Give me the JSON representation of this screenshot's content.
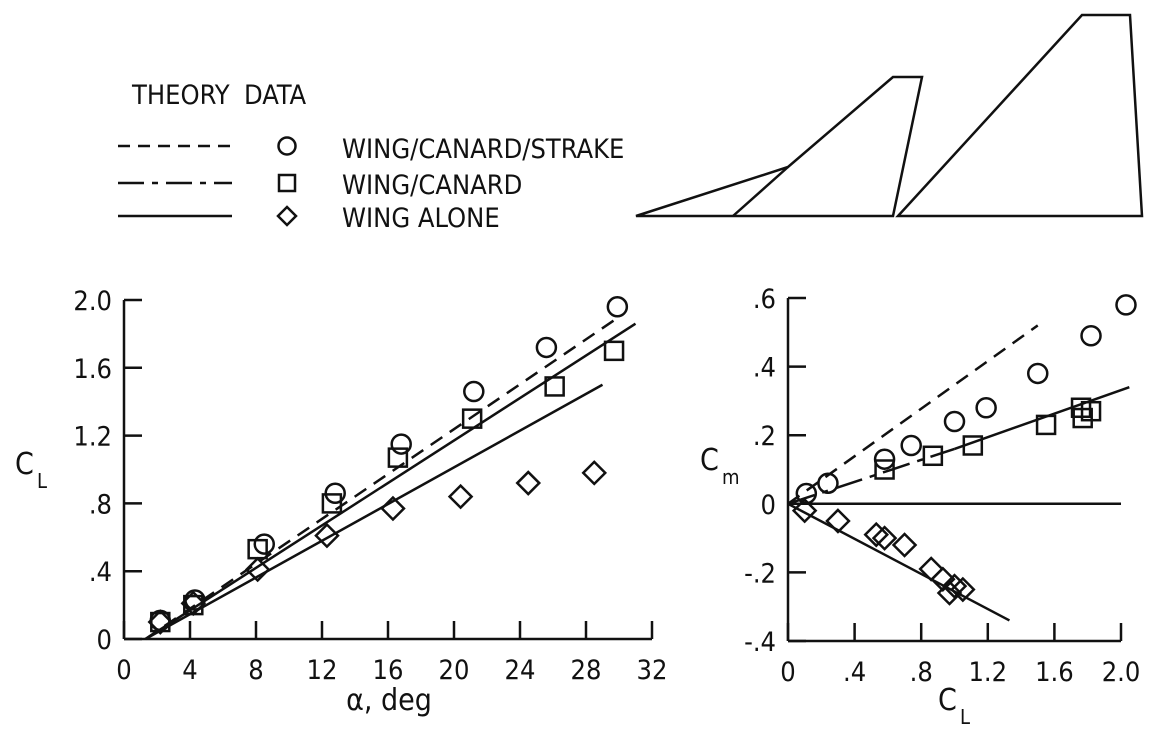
{
  "legend": {
    "theory_header": "THEORY",
    "data_header": "DATA",
    "entries": [
      {
        "label": "WING/CANARD/STRAKE",
        "line": "dashed",
        "marker": "circle"
      },
      {
        "label": "WING/CANARD",
        "line": "dash-dot",
        "marker": "square"
      },
      {
        "label": "WING ALONE",
        "line": "solid",
        "marker": "diamond"
      }
    ]
  },
  "planform_icons": [
    "wing-strake-planform",
    "canard-planform"
  ],
  "colors": {
    "ink": "#111111",
    "background": "#ffffff"
  },
  "chart_data": [
    {
      "type": "scatter",
      "title": "",
      "xlabel": "α, deg",
      "ylabel": "C",
      "ylabel_sub": "L",
      "xlim": [
        0,
        32
      ],
      "ylim": [
        0,
        2.0
      ],
      "xticks": [
        0,
        4,
        8,
        12,
        16,
        20,
        24,
        28,
        32
      ],
      "xtick_labels": [
        "0",
        "4",
        "8",
        "12",
        "16",
        "20",
        "24",
        "28",
        "32"
      ],
      "yticks": [
        0,
        0.4,
        0.8,
        1.2,
        1.6,
        2.0
      ],
      "ytick_labels": [
        "0",
        ".4",
        ".8",
        "1.2",
        "1.6",
        "2.0"
      ],
      "grid": false,
      "series": [
        {
          "name": "WING/CANARD/STRAKE",
          "marker": "circle",
          "x": [
            2.2,
            4.3,
            8.5,
            12.8,
            16.8,
            21.2,
            25.6,
            29.9
          ],
          "y": [
            0.11,
            0.23,
            0.56,
            0.86,
            1.15,
            1.46,
            1.72,
            1.96
          ]
        },
        {
          "name": "WING/CANARD",
          "marker": "square",
          "x": [
            2.2,
            4.2,
            8.1,
            12.6,
            16.6,
            21.1,
            26.1,
            29.7
          ],
          "y": [
            0.1,
            0.2,
            0.53,
            0.8,
            1.07,
            1.3,
            1.49,
            1.7
          ]
        },
        {
          "name": "WING ALONE",
          "marker": "diamond",
          "x": [
            2.2,
            4.2,
            8.1,
            12.3,
            16.3,
            20.4,
            24.5,
            28.5
          ],
          "y": [
            0.1,
            0.21,
            0.41,
            0.61,
            0.77,
            0.84,
            0.92,
            0.98
          ]
        }
      ],
      "theory_lines": [
        {
          "name": "WING/CANARD/STRAKE",
          "style": "dashed",
          "x": [
            1.3,
            30
          ],
          "y": [
            0,
            1.9
          ]
        },
        {
          "name": "WING/CANARD",
          "style": "solid",
          "x": [
            1.3,
            31
          ],
          "y": [
            0,
            1.86
          ]
        },
        {
          "name": "WING ALONE",
          "style": "solid",
          "x": [
            1.3,
            29
          ],
          "y": [
            0,
            1.5
          ]
        }
      ]
    },
    {
      "type": "scatter",
      "title": "",
      "xlabel": "C",
      "xlabel_sub": "L",
      "ylabel": "C",
      "ylabel_sub": "m",
      "xlim": [
        0,
        2.0
      ],
      "ylim": [
        -0.4,
        0.6
      ],
      "xticks": [
        0,
        0.4,
        0.8,
        1.2,
        1.6,
        2.0
      ],
      "xtick_labels": [
        "0",
        ".4",
        ".8",
        "1.2",
        "1.6",
        "2.0"
      ],
      "yticks": [
        -0.4,
        -0.2,
        0,
        0.2,
        0.4,
        0.6
      ],
      "ytick_labels": [
        "-.4",
        "-.2",
        "0",
        ".2",
        ".4",
        ".6"
      ],
      "grid": false,
      "series": [
        {
          "name": "WING/CANARD/STRAKE",
          "marker": "circle",
          "x": [
            0.11,
            0.24,
            0.58,
            0.74,
            1.0,
            1.19,
            1.5,
            1.82,
            2.03
          ],
          "y": [
            0.03,
            0.06,
            0.13,
            0.17,
            0.24,
            0.28,
            0.38,
            0.49,
            0.58
          ]
        },
        {
          "name": "WING/CANARD",
          "marker": "square",
          "x": [
            0.58,
            0.87,
            1.11,
            1.55,
            1.76,
            1.77,
            1.82
          ],
          "y": [
            0.1,
            0.14,
            0.17,
            0.23,
            0.28,
            0.25,
            0.27
          ]
        },
        {
          "name": "WING ALONE",
          "marker": "diamond",
          "x": [
            0.1,
            0.3,
            0.53,
            0.58,
            0.7,
            0.86,
            0.93,
            0.97,
            1.0,
            1.05
          ],
          "y": [
            -0.02,
            -0.05,
            -0.09,
            -0.1,
            -0.12,
            -0.19,
            -0.22,
            -0.26,
            -0.24,
            -0.25
          ]
        }
      ],
      "theory_lines": [
        {
          "name": "zero-reference",
          "style": "solid",
          "x": [
            0,
            2.0
          ],
          "y": [
            0,
            0
          ]
        },
        {
          "name": "WING/CANARD/STRAKE",
          "style": "dashed",
          "x": [
            0,
            1.5
          ],
          "y": [
            0,
            0.52
          ]
        },
        {
          "name": "WING/CANARD",
          "style": "dash-dot",
          "x": [
            0,
            1.0
          ],
          "y": [
            0,
            0.16
          ]
        },
        {
          "name": "WING/CANARD",
          "style": "solid",
          "x": [
            1.0,
            2.05
          ],
          "y": [
            0.16,
            0.34
          ]
        },
        {
          "name": "WING ALONE",
          "style": "solid",
          "x": [
            0,
            1.33
          ],
          "y": [
            0,
            -0.34
          ]
        }
      ]
    }
  ]
}
